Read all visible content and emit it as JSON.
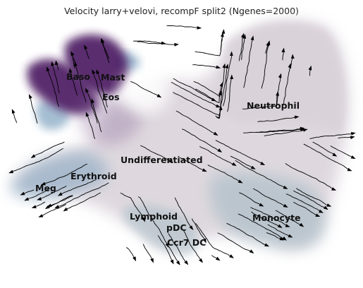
{
  "title": "Velocity larry+velovi, recompF split2 (Ngenes=2000)",
  "colors": {
    "background": "#ffffff",
    "neutral_cells": "#d9d2d9",
    "purple_cells": "#4e1b63",
    "purple_light": "#8a6a9a",
    "blue_cells": "#7fa3bf",
    "teal_cells": "#a9bcc6",
    "streamlines": "#000000"
  },
  "clusters": [
    {
      "id": "baso",
      "label": "Baso"
    },
    {
      "id": "mast",
      "label": "Mast"
    },
    {
      "id": "eos",
      "label": "Eos"
    },
    {
      "id": "neutrophil",
      "label": "Neutrophil"
    },
    {
      "id": "undifferentiated",
      "label": "Undifferentiated"
    },
    {
      "id": "erythroid",
      "label": "Erythroid"
    },
    {
      "id": "meg",
      "label": "Meg"
    },
    {
      "id": "lymphoid",
      "label": "Lymphoid"
    },
    {
      "id": "pdc",
      "label": "pDC"
    },
    {
      "id": "monocyte",
      "label": "Monocyte"
    },
    {
      "id": "ccr7dc",
      "label": "Ccr7 DC"
    }
  ]
}
